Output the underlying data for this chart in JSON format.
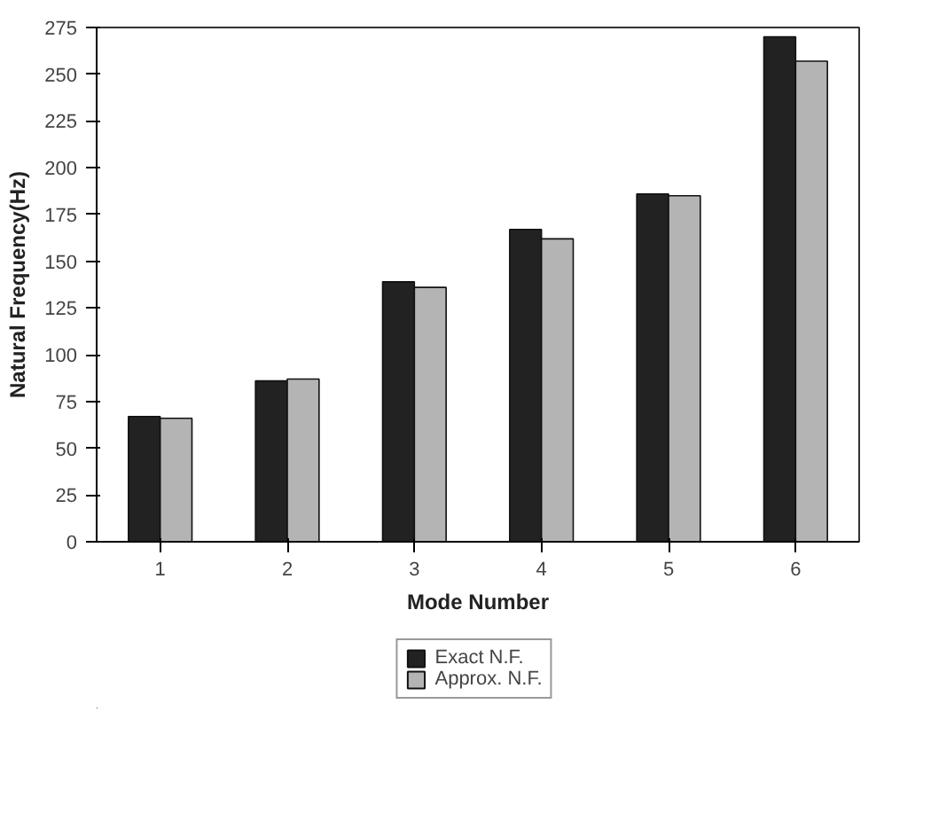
{
  "chart_data": {
    "type": "bar",
    "xlabel": "Mode Number",
    "ylabel": "Natural Frequency(Hz)",
    "categories": [
      "1",
      "2",
      "3",
      "4",
      "5",
      "6"
    ],
    "series": [
      {
        "name": "Exact N.F.",
        "color": "#222222",
        "values": [
          67,
          86,
          139,
          167,
          186,
          270
        ]
      },
      {
        "name": "Approx. N.F.",
        "color": "#b4b4b4",
        "values": [
          66,
          87,
          136,
          162,
          185,
          257
        ]
      }
    ],
    "ylim": [
      0,
      275
    ],
    "yticks": [
      0,
      25,
      50,
      75,
      100,
      125,
      150,
      175,
      200,
      225,
      250,
      275
    ],
    "grid": false,
    "legend": "bottom"
  }
}
